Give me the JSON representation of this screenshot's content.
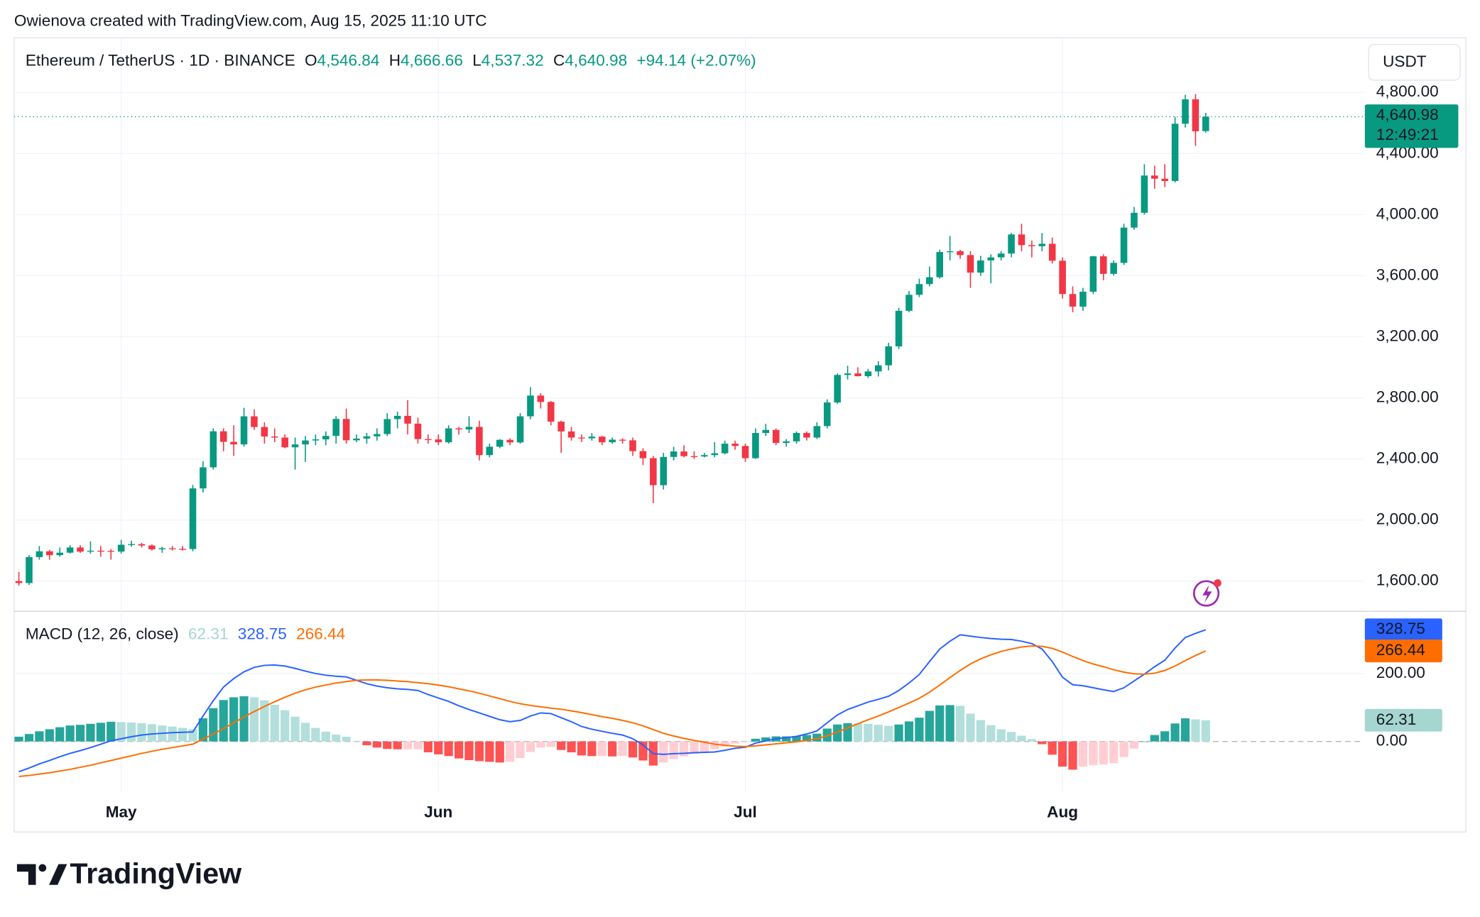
{
  "header": {
    "caption": "Owienova created with TradingView.com, Aug 15, 2025 11:10 UTC",
    "footer_logo": "TradingView"
  },
  "chart_data": [
    {
      "type": "candlestick",
      "symbol": "Ethereum / TetherUS · 1D · BINANCE",
      "ohlc_legend": {
        "o_label": "O",
        "o": "4,546.84",
        "h_label": "H",
        "h": "4,666.66",
        "l_label": "L",
        "l": "4,537.32",
        "c_label": "C",
        "c": "4,640.98",
        "change": "+94.14 (+2.07%)"
      },
      "currency": "USDT",
      "last_label": "4,640.98",
      "countdown": "12:49:21",
      "up_color": "#089981",
      "down_color": "#f23645",
      "grid": true,
      "ylim": [
        1402,
        5158
      ],
      "yticks": [
        {
          "value": 1600,
          "label": "1,600.00"
        },
        {
          "value": 2000,
          "label": "2,000.00"
        },
        {
          "value": 2400,
          "label": "2,400.00"
        },
        {
          "value": 2800,
          "label": "2,800.00"
        },
        {
          "value": 3200,
          "label": "3,200.00"
        },
        {
          "value": 3600,
          "label": "3,600.00"
        },
        {
          "value": 4000,
          "label": "4,000.00"
        },
        {
          "value": 4400,
          "label": "4,400.00"
        },
        {
          "value": 4800,
          "label": "4,800.00"
        }
      ],
      "categories": [
        null,
        null,
        null,
        null,
        null,
        null,
        null,
        null,
        null,
        null,
        "May",
        null,
        null,
        null,
        null,
        null,
        null,
        null,
        null,
        null,
        null,
        null,
        null,
        null,
        null,
        null,
        null,
        null,
        null,
        null,
        null,
        null,
        null,
        null,
        null,
        null,
        null,
        null,
        null,
        null,
        null,
        "Jun",
        null,
        null,
        null,
        null,
        null,
        null,
        null,
        null,
        null,
        null,
        null,
        null,
        null,
        null,
        null,
        null,
        null,
        null,
        null,
        null,
        null,
        null,
        null,
        null,
        null,
        null,
        null,
        null,
        null,
        "Jul",
        null,
        null,
        null,
        null,
        null,
        null,
        null,
        null,
        null,
        null,
        null,
        null,
        null,
        null,
        null,
        null,
        null,
        null,
        null,
        null,
        null,
        null,
        null,
        null,
        null,
        null,
        null,
        null,
        null,
        null,
        "Aug",
        null,
        null,
        null,
        null,
        null,
        null,
        null,
        null,
        null,
        null,
        null,
        null,
        null,
        null
      ],
      "open": [
        1600,
        1587,
        1757,
        1795,
        1770,
        1786,
        1820,
        1793,
        1799,
        1798,
        1793,
        1838,
        1842,
        1833,
        1808,
        1815,
        1811,
        1810,
        2207,
        2345,
        2581,
        2512,
        2495,
        2679,
        2609,
        2547,
        2540,
        2476,
        2495,
        2521,
        2528,
        2551,
        2662,
        2522,
        2533,
        2548,
        2563,
        2661,
        2682,
        2631,
        2530,
        2528,
        2509,
        2600,
        2593,
        2610,
        2425,
        2480,
        2525,
        2508,
        2679,
        2815,
        2773,
        2644,
        2580,
        2540,
        2535,
        2546,
        2509,
        2526,
        2522,
        2451,
        2405,
        2228,
        2413,
        2449,
        2418,
        2416,
        2425,
        2437,
        2500,
        2485,
        2405,
        2570,
        2590,
        2505,
        2515,
        2570,
        2540,
        2615,
        2770,
        2950,
        2960,
        2942,
        2973,
        3013,
        3137,
        3370,
        3475,
        3545,
        3590,
        3755,
        3760,
        3735,
        3620,
        3700,
        3720,
        3745,
        3870,
        3800,
        3793,
        3809,
        3698,
        3480,
        3397,
        3495,
        3727,
        3612,
        3684,
        3915,
        4012,
        4256,
        4235,
        4220,
        4595,
        4755,
        4546.84
      ],
      "high": [
        1660,
        1770,
        1830,
        1805,
        1820,
        1835,
        1835,
        1860,
        1830,
        1810,
        1870,
        1865,
        1850,
        1840,
        1825,
        1830,
        1830,
        2230,
        2385,
        2600,
        2600,
        2620,
        2735,
        2725,
        2640,
        2600,
        2560,
        2540,
        2550,
        2560,
        2580,
        2680,
        2730,
        2560,
        2570,
        2600,
        2700,
        2710,
        2785,
        2670,
        2560,
        2560,
        2620,
        2610,
        2680,
        2650,
        2500,
        2530,
        2535,
        2700,
        2870,
        2830,
        2780,
        2650,
        2610,
        2560,
        2570,
        2550,
        2540,
        2535,
        2540,
        2470,
        2420,
        2440,
        2480,
        2490,
        2450,
        2440,
        2510,
        2520,
        2520,
        2500,
        2600,
        2630,
        2600,
        2530,
        2580,
        2580,
        2640,
        2790,
        2960,
        3010,
        3000,
        2990,
        3040,
        3160,
        3390,
        3500,
        3580,
        3660,
        3770,
        3860,
        3770,
        3760,
        3730,
        3740,
        3760,
        3880,
        3940,
        3830,
        3880,
        3850,
        3720,
        3530,
        3520,
        3730,
        3740,
        3700,
        3940,
        4050,
        4330,
        4320,
        4330,
        4640,
        4785,
        4790,
        4666.66
      ],
      "low": [
        1570,
        1575,
        1740,
        1740,
        1760,
        1780,
        1785,
        1780,
        1760,
        1740,
        1780,
        1825,
        1820,
        1800,
        1785,
        1800,
        1800,
        1795,
        2180,
        2330,
        2450,
        2420,
        2480,
        2590,
        2500,
        2510,
        2470,
        2330,
        2380,
        2490,
        2490,
        2500,
        2500,
        2510,
        2500,
        2520,
        2550,
        2600,
        2560,
        2500,
        2500,
        2490,
        2500,
        2560,
        2570,
        2390,
        2410,
        2470,
        2490,
        2500,
        2660,
        2730,
        2620,
        2440,
        2520,
        2510,
        2520,
        2490,
        2500,
        2500,
        2420,
        2360,
        2110,
        2200,
        2390,
        2410,
        2400,
        2410,
        2410,
        2430,
        2460,
        2380,
        2400,
        2550,
        2490,
        2480,
        2500,
        2520,
        2530,
        2600,
        2760,
        2920,
        2940,
        2930,
        2940,
        2980,
        3120,
        3360,
        3460,
        3530,
        3580,
        3700,
        3710,
        3520,
        3600,
        3550,
        3700,
        3720,
        3760,
        3720,
        3760,
        3680,
        3450,
        3360,
        3370,
        3480,
        3570,
        3600,
        3670,
        3900,
        4000,
        4170,
        4180,
        4210,
        4570,
        4450,
        4537.32
      ],
      "close": [
        1587,
        1757,
        1795,
        1770,
        1786,
        1820,
        1793,
        1799,
        1798,
        1793,
        1838,
        1842,
        1833,
        1808,
        1815,
        1811,
        1810,
        2207,
        2345,
        2581,
        2512,
        2495,
        2679,
        2609,
        2547,
        2540,
        2476,
        2495,
        2521,
        2528,
        2551,
        2662,
        2522,
        2533,
        2548,
        2563,
        2661,
        2682,
        2631,
        2530,
        2528,
        2509,
        2600,
        2593,
        2610,
        2425,
        2480,
        2525,
        2508,
        2679,
        2815,
        2773,
        2644,
        2580,
        2540,
        2535,
        2546,
        2509,
        2526,
        2522,
        2451,
        2405,
        2228,
        2413,
        2449,
        2418,
        2416,
        2425,
        2437,
        2500,
        2485,
        2405,
        2570,
        2590,
        2505,
        2515,
        2570,
        2540,
        2615,
        2770,
        2950,
        2960,
        2942,
        2973,
        3013,
        3137,
        3370,
        3475,
        3545,
        3590,
        3755,
        3760,
        3735,
        3620,
        3700,
        3720,
        3745,
        3870,
        3800,
        3793,
        3809,
        3698,
        3480,
        3397,
        3495,
        3727,
        3612,
        3684,
        3915,
        4012,
        4256,
        4235,
        4220,
        4595,
        4755,
        4546,
        4640.98
      ]
    },
    {
      "type": "macd",
      "title": "MACD (12, 26, close)",
      "grid": true,
      "ylim": [
        -150,
        383
      ],
      "yticks": [
        {
          "value": 0,
          "label": "0.00"
        },
        {
          "value": 200,
          "label": "200.00"
        }
      ],
      "series": [
        {
          "kind": "histogram",
          "colors": {
            "up_grow": "#26a69a",
            "up_fall": "#b2dfdb",
            "down_grow": "#ff5252",
            "down_fall": "#ffcdd2"
          },
          "color": "#a5d6d0",
          "values": [
            14,
            22,
            30,
            36,
            42,
            47,
            49,
            52,
            55,
            58,
            57,
            56,
            54,
            51,
            47,
            44,
            40,
            36,
            68,
            98,
            122,
            130,
            133,
            130,
            121,
            108,
            92,
            73,
            55,
            40,
            29,
            20,
            14,
            0,
            -11,
            -18,
            -22,
            -23,
            -23,
            -23,
            -32,
            -38,
            -43,
            -50,
            -55,
            -58,
            -60,
            -62,
            -60,
            -49,
            -31,
            -18,
            -16,
            -25,
            -32,
            -41,
            -43,
            -43,
            -44,
            -43,
            -47,
            -56,
            -71,
            -62,
            -52,
            -44,
            -36,
            -30,
            -23,
            -15,
            -6,
            -2,
            8,
            12,
            15,
            15,
            16,
            19,
            23,
            38,
            50,
            54,
            53,
            52,
            49,
            46,
            50,
            59,
            70,
            90,
            106,
            107,
            105,
            82,
            63,
            48,
            36,
            28,
            17,
            7,
            -8,
            -39,
            -74,
            -83,
            -74,
            -70,
            -68,
            -64,
            -46,
            -21,
            0,
            19,
            30,
            53,
            68,
            65,
            62.31
          ]
        },
        {
          "kind": "line",
          "color": "#2962ff",
          "values": [
            -89,
            -78,
            -66,
            -56,
            -45,
            -35,
            -27,
            -18,
            -8,
            2,
            8,
            14,
            19,
            22,
            24,
            26,
            27,
            28,
            75,
            120,
            160,
            185,
            205,
            218,
            224,
            225,
            222,
            215,
            207,
            200,
            195,
            192,
            190,
            180,
            170,
            163,
            158,
            155,
            153,
            150,
            138,
            128,
            118,
            105,
            94,
            84,
            74,
            64,
            58,
            62,
            75,
            84,
            82,
            70,
            58,
            44,
            36,
            30,
            24,
            19,
            8,
            -10,
            -36,
            -38,
            -36,
            -35,
            -33,
            -32,
            -31,
            -26,
            -20,
            -17,
            -5,
            2,
            8,
            11,
            15,
            22,
            31,
            55,
            78,
            94,
            105,
            116,
            124,
            133,
            150,
            172,
            197,
            235,
            272,
            295,
            314,
            310,
            306,
            303,
            301,
            300,
            295,
            288,
            272,
            235,
            189,
            167,
            164,
            158,
            152,
            147,
            158,
            178,
            198,
            220,
            239,
            275,
            306,
            318,
            328.75
          ]
        },
        {
          "kind": "line",
          "color": "#ff6d00",
          "values": [
            -103,
            -100,
            -96,
            -92,
            -87,
            -82,
            -76,
            -70,
            -63,
            -56,
            -49,
            -42,
            -35,
            -29,
            -23,
            -18,
            -13,
            -8,
            7,
            22,
            38,
            55,
            72,
            88,
            103,
            117,
            130,
            142,
            152,
            160,
            166,
            172,
            176,
            180,
            181,
            181,
            180,
            178,
            176,
            173,
            170,
            166,
            161,
            155,
            149,
            142,
            134,
            126,
            118,
            111,
            106,
            102,
            98,
            95,
            90,
            85,
            79,
            73,
            68,
            62,
            55,
            46,
            35,
            24,
            16,
            9,
            3,
            -2,
            -8,
            -11,
            -14,
            -15,
            -13,
            -10,
            -7,
            -4,
            -1,
            3,
            8,
            17,
            28,
            40,
            52,
            64,
            75,
            87,
            100,
            113,
            127,
            145,
            166,
            188,
            209,
            228,
            243,
            255,
            265,
            272,
            278,
            281,
            280,
            274,
            263,
            250,
            238,
            228,
            220,
            211,
            204,
            199,
            198,
            201,
            209,
            222,
            238,
            253,
            266.44
          ]
        }
      ]
    }
  ]
}
